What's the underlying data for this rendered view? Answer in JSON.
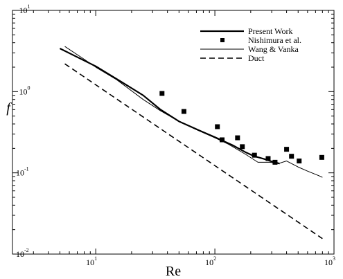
{
  "chart_data": {
    "type": "line",
    "title": "",
    "xlabel": "Re",
    "ylabel": "f",
    "xscale": "log",
    "yscale": "log",
    "xlim": [
      2,
      1000
    ],
    "ylim": [
      0.01,
      10
    ],
    "x_ticks": [
      {
        "value": 10,
        "base": "10",
        "exp": "1"
      },
      {
        "value": 100,
        "base": "10",
        "exp": "2"
      },
      {
        "value": 1000,
        "base": "10",
        "exp": "3"
      }
    ],
    "y_ticks": [
      {
        "value": 0.01,
        "base": "10",
        "exp": "-2"
      },
      {
        "value": 0.1,
        "base": "10",
        "exp": "-1"
      },
      {
        "value": 1,
        "base": "10",
        "exp": "0"
      },
      {
        "value": 10,
        "base": "10",
        "exp": "1"
      }
    ],
    "grid": false,
    "legend_position": "top-right",
    "series": [
      {
        "name": "Present Work",
        "style": "thick-line",
        "color": "#000000",
        "points": [
          [
            5,
            3.4
          ],
          [
            10,
            2.05
          ],
          [
            16,
            1.35
          ],
          [
            25,
            0.9
          ],
          [
            35,
            0.6
          ],
          [
            50,
            0.43
          ],
          [
            75,
            0.33
          ],
          [
            100,
            0.275
          ],
          [
            140,
            0.22
          ],
          [
            180,
            0.18
          ],
          [
            215,
            0.16
          ],
          [
            260,
            0.148
          ],
          [
            300,
            0.138
          ],
          [
            350,
            0.13
          ]
        ]
      },
      {
        "name": "Nishimura et al.",
        "style": "square-markers",
        "color": "#000000",
        "points": [
          [
            36,
            0.95
          ],
          [
            55,
            0.57
          ],
          [
            105,
            0.37
          ],
          [
            115,
            0.255
          ],
          [
            155,
            0.27
          ],
          [
            170,
            0.21
          ],
          [
            215,
            0.165
          ],
          [
            280,
            0.15
          ],
          [
            320,
            0.135
          ],
          [
            400,
            0.195
          ],
          [
            440,
            0.16
          ],
          [
            510,
            0.14
          ],
          [
            790,
            0.155
          ]
        ]
      },
      {
        "name": "Wang & Vanka",
        "style": "thin-line",
        "color": "#000000",
        "points": [
          [
            5.5,
            3.6
          ],
          [
            8,
            2.5
          ],
          [
            10,
            2.0
          ],
          [
            15,
            1.4
          ],
          [
            25,
            0.8
          ],
          [
            35,
            0.58
          ],
          [
            50,
            0.43
          ],
          [
            70,
            0.34
          ],
          [
            100,
            0.27
          ],
          [
            130,
            0.225
          ],
          [
            180,
            0.17
          ],
          [
            230,
            0.135
          ],
          [
            290,
            0.135
          ],
          [
            340,
            0.13
          ],
          [
            400,
            0.14
          ],
          [
            500,
            0.118
          ],
          [
            600,
            0.105
          ],
          [
            750,
            0.092
          ],
          [
            800,
            0.088
          ]
        ]
      },
      {
        "name": "Duct",
        "style": "dashed-line",
        "color": "#000000",
        "points": [
          [
            5.5,
            2.2
          ],
          [
            800,
            0.0155
          ]
        ]
      }
    ]
  }
}
